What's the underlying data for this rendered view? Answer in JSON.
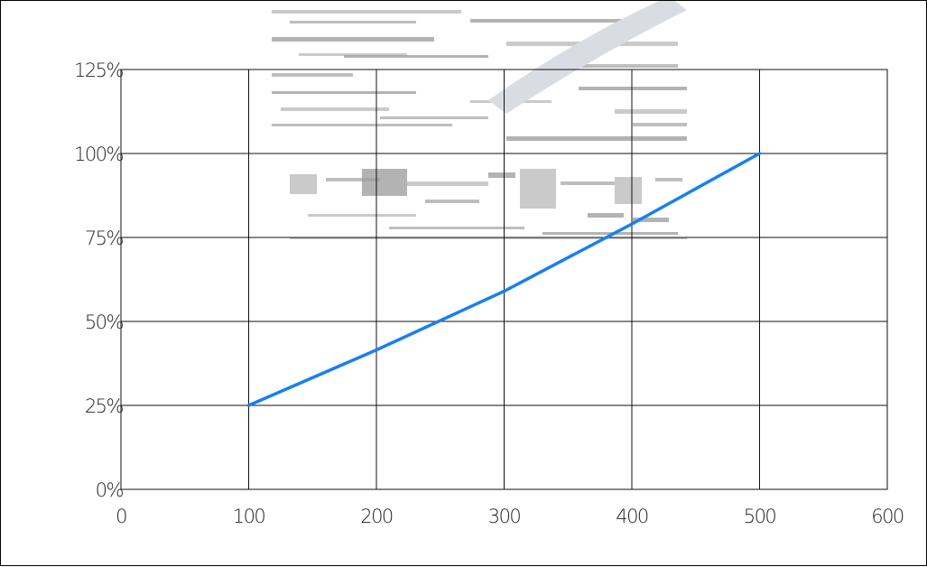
{
  "chart_data": {
    "type": "line",
    "title": "",
    "xlabel": "",
    "ylabel": "",
    "x_ticks": [
      "0",
      "100",
      "200",
      "300",
      "400",
      "500",
      "600"
    ],
    "y_ticks": [
      "0%",
      "25%",
      "50%",
      "75%",
      "100%",
      "125%"
    ],
    "xlim": [
      0,
      600
    ],
    "ylim": [
      0,
      125
    ],
    "grid": true,
    "legend": "none",
    "series": [
      {
        "color": "#1a7ff0",
        "x": [
          100,
          200,
          300,
          400,
          500
        ],
        "y": [
          25,
          41.5,
          59,
          79,
          100
        ]
      }
    ]
  }
}
